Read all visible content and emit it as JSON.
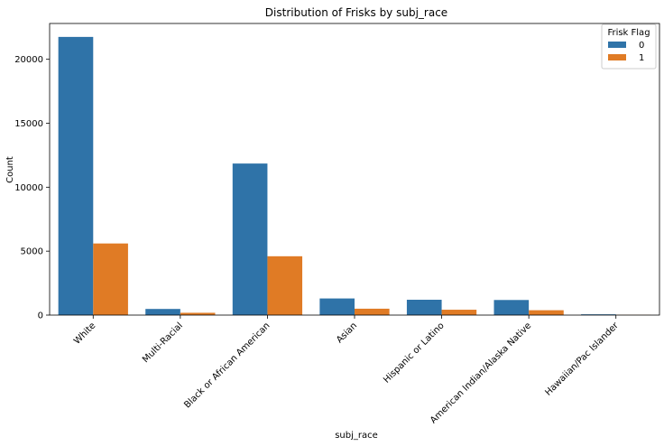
{
  "chart_data": {
    "type": "bar",
    "title": "Distribution of Frisks by subj_race",
    "xlabel": "subj_race",
    "ylabel": "Count",
    "ylim": [
      0,
      22800
    ],
    "yticks": [
      0,
      5000,
      10000,
      15000,
      20000
    ],
    "categories": [
      "White",
      "Multi-Racial",
      "Black or African American",
      "Asian",
      "Hispanic or Latino",
      "American Indian/Alaska Native",
      "Hawaiian/Pac Islander"
    ],
    "series": [
      {
        "name": "0",
        "color": "#2f73a8",
        "values": [
          21750,
          480,
          11850,
          1300,
          1200,
          1180,
          60
        ]
      },
      {
        "name": "1",
        "color": "#e07b25",
        "values": [
          5600,
          180,
          4600,
          500,
          420,
          380,
          15
        ]
      }
    ],
    "legend": {
      "title": "Frisk Flag",
      "position": "top-right"
    },
    "grid": false
  }
}
